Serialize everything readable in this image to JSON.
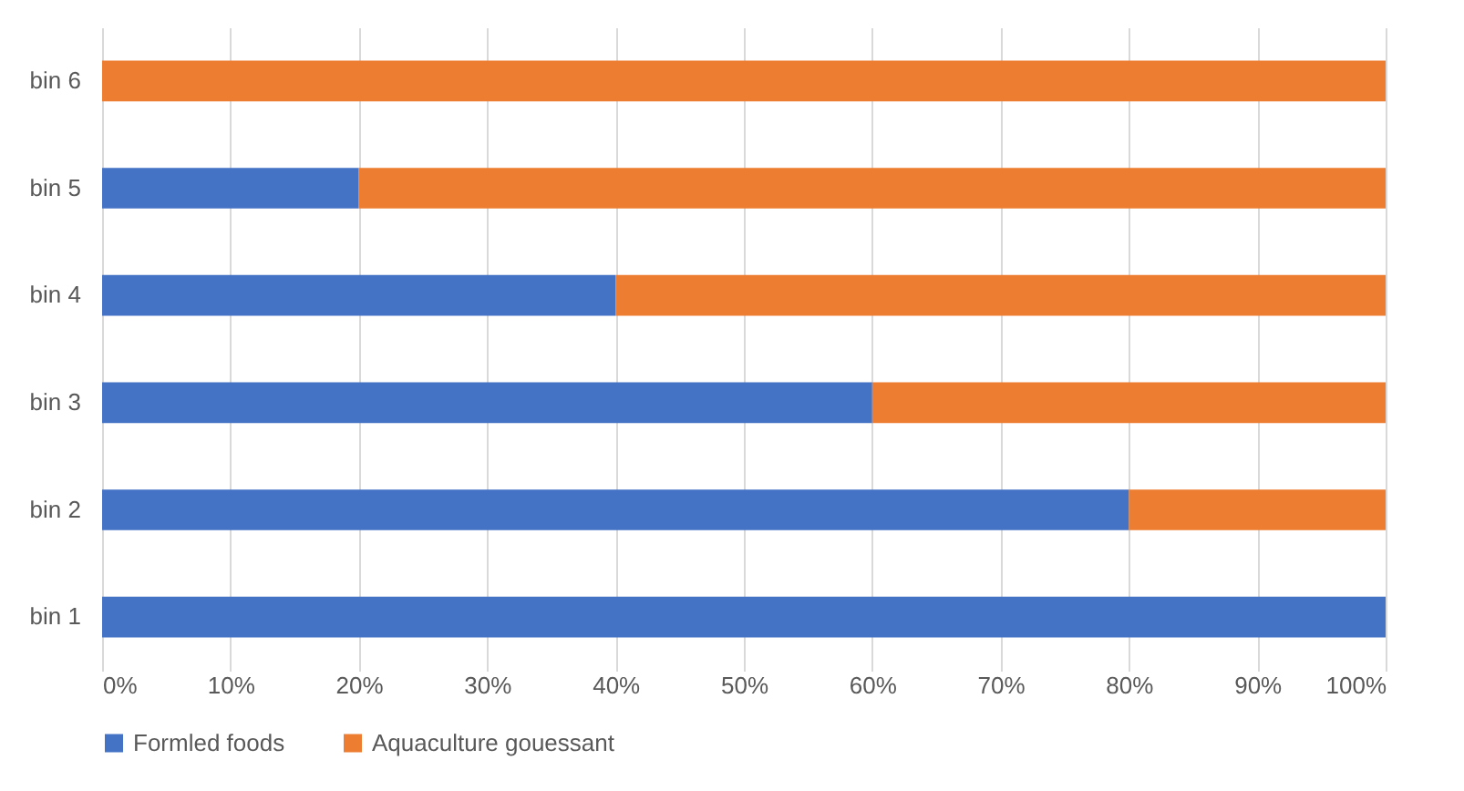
{
  "chart_data": {
    "type": "bar",
    "orientation": "horizontal",
    "stacked": true,
    "categories": [
      "bin 6",
      "bin 5",
      "bin 4",
      "bin 3",
      "bin 2",
      "bin 1"
    ],
    "series": [
      {
        "name": "Formled foods",
        "color": "#4472c4",
        "values": [
          0,
          20,
          40,
          60,
          80,
          100
        ]
      },
      {
        "name": "Aquaculture gouessant",
        "color": "#ed7d31",
        "values": [
          100,
          80,
          60,
          40,
          20,
          0
        ]
      }
    ],
    "xlim": [
      0,
      100
    ],
    "xticks": [
      {
        "value": 0,
        "label": "0%"
      },
      {
        "value": 10,
        "label": "10%"
      },
      {
        "value": 20,
        "label": "20%"
      },
      {
        "value": 30,
        "label": "30%"
      },
      {
        "value": 40,
        "label": "40%"
      },
      {
        "value": 50,
        "label": "50%"
      },
      {
        "value": 60,
        "label": "60%"
      },
      {
        "value": 70,
        "label": "70%"
      },
      {
        "value": 80,
        "label": "80%"
      },
      {
        "value": 90,
        "label": "90%"
      },
      {
        "value": 100,
        "label": "100%"
      }
    ],
    "grid": "x",
    "legend": "bottom"
  }
}
